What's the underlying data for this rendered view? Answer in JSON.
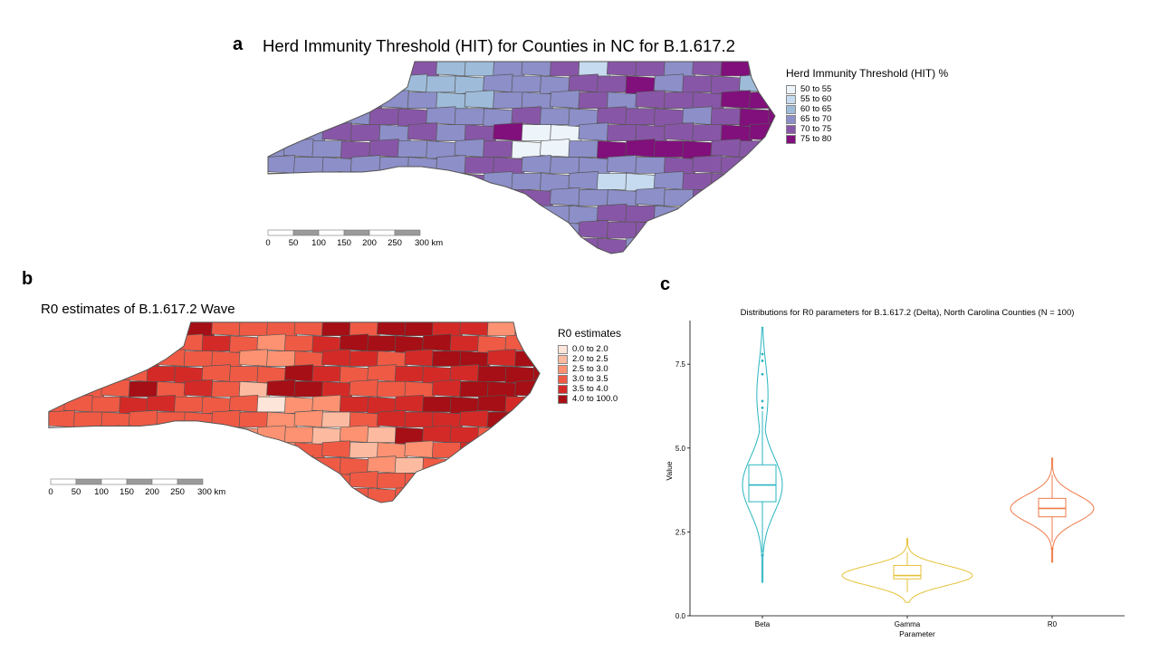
{
  "panels": {
    "a": {
      "letter": "a",
      "title": "Herd Immunity Threshold (HIT) for Counties in NC for B.1.617.2",
      "legend_title": "Herd Immunity Threshold (HIT) %",
      "legend": [
        {
          "label": "50 to 55",
          "color": "#edf4fa"
        },
        {
          "label": "55 to 60",
          "color": "#c6dbef"
        },
        {
          "label": "60 to 65",
          "color": "#9ebcda"
        },
        {
          "label": "65 to 70",
          "color": "#8c8fc8"
        },
        {
          "label": "70 to 75",
          "color": "#8856a7"
        },
        {
          "label": "75 to 80",
          "color": "#810f7c"
        }
      ],
      "scale_labels": [
        "0",
        "50",
        "100",
        "150",
        "200",
        "250",
        "300 km"
      ]
    },
    "b": {
      "letter": "b",
      "title": "R0 estimates of B.1.617.2 Wave",
      "legend_title": "R0 estimates",
      "legend": [
        {
          "label": "0.0 to 2.0",
          "color": "#fee5d9"
        },
        {
          "label": "2.0 to 2.5",
          "color": "#fcbba1"
        },
        {
          "label": "2.5 to 3.0",
          "color": "#fc9272"
        },
        {
          "label": "3.0 to 3.5",
          "color": "#ef5a45"
        },
        {
          "label": "3.5 to 4.0",
          "color": "#d42a27"
        },
        {
          "label": "4.0 to 100.0",
          "color": "#a50f15"
        }
      ],
      "scale_labels": [
        "0",
        "50",
        "100",
        "150",
        "200",
        "250",
        "300 km"
      ]
    },
    "c": {
      "letter": "c",
      "title": "Distributions for R0 parameters for B.1.617.2 (Delta), North Carolina Counties (N = 100)"
    }
  },
  "chart_data": {
    "type": "violin",
    "title": "Distributions for R0 parameters for B.1.617.2 (Delta), North Carolina Counties (N = 100)",
    "xlabel": "Parameter",
    "ylabel": "Value",
    "ylim": [
      0,
      8.8
    ],
    "yticks": [
      0.0,
      2.5,
      5.0,
      7.5
    ],
    "ytick_labels": [
      "0.0",
      "2.5",
      "5.0",
      "7.5"
    ],
    "categories": [
      "Beta",
      "Gamma",
      "R0"
    ],
    "series": [
      {
        "category": "Beta",
        "color": "#2ab5c0",
        "min": 1.0,
        "max": 8.6,
        "q1": 3.4,
        "median": 3.9,
        "q3": 4.5,
        "whisker_low": 1.9,
        "whisker_high": 6.1,
        "outliers": [
          1.8,
          6.2,
          6.4,
          7.2,
          7.6,
          7.8
        ]
      },
      {
        "category": "Gamma",
        "color": "#e5c23a",
        "min": 0.4,
        "max": 2.3,
        "q1": 1.1,
        "median": 1.2,
        "q3": 1.5,
        "whisker_low": 0.7,
        "whisker_high": 1.9,
        "outliers": []
      },
      {
        "category": "R0",
        "color": "#ef7a48",
        "min": 1.6,
        "max": 4.7,
        "q1": 2.95,
        "median": 3.2,
        "q3": 3.5,
        "whisker_low": 2.2,
        "whisker_high": 4.2,
        "outliers": [
          2.0
        ]
      }
    ]
  }
}
